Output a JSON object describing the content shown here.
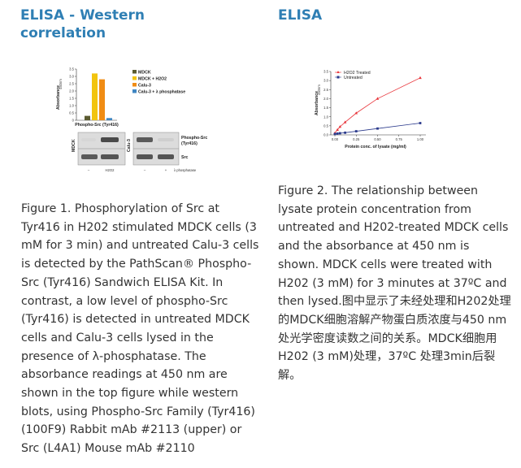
{
  "left": {
    "heading": "ELISA - Western correlation",
    "figure": {
      "bar_chart": {
        "type": "bar",
        "ylabel": "Absorbance",
        "ylabel_sub": "450nm",
        "yticks": [
          "0",
          "0.5",
          "1.0",
          "1.5",
          "2.0",
          "2.5",
          "3.0",
          "3.5"
        ],
        "ylim": [
          0,
          3.5
        ],
        "xlabel": "Phospho-Src (Tyr416)",
        "series": [
          {
            "name": "MDCK",
            "color": "#5b5b30",
            "value": 0.3
          },
          {
            "name": "MDCK + H2O2",
            "color": "#f2c40e",
            "value": 3.2
          },
          {
            "name": "Calu-3",
            "color": "#f08c14",
            "value": 2.8
          },
          {
            "name": "Calu-3 + λ phosphatase",
            "color": "#3f86c2",
            "value": 0.15
          }
        ]
      },
      "blot": {
        "mdck_label": "MDCK",
        "calu_label": "Calu-3",
        "band_label_1_line1": "Phospho-Src",
        "band_label_1_line2": "(Tyr416)",
        "band_label_2": "Src",
        "mdck_conditions": [
          "–",
          "H2O2"
        ],
        "calu_conditions": [
          "–",
          "+"
        ],
        "calu_condition_label": "λ phosphatase"
      }
    },
    "caption": "Figure 1. Phosphorylation of Src at Tyr416 in H202 stimulated MDCK cells (3 mM for 3 min) and untreated Calu-3 cells is detected by the PathScan® Phospho-Src (Tyr416) Sandwich ELISA Kit. In contrast, a low level of phospho-Src (Tyr416) is detected in untreated MDCK cells and Calu-3 cells lysed in the presence of λ-phosphatase. The absorbance readings at 450 nm are shown in the top figure while western blots, using Phospho-Src Family (Tyr416) (100F9) Rabbit mAb #2113 (upper) or Src (L4A1) Mouse mAb #2110"
  },
  "right": {
    "heading": "ELISA",
    "figure": {
      "line_chart": {
        "type": "line",
        "xlabel": "Protein conc. of lysate (mg/ml)",
        "ylabel": "Absorbance",
        "ylabel_sub": "450nm",
        "xticks": [
          "0.00",
          "0.25",
          "0.50",
          "0.75",
          "1.00"
        ],
        "yticks": [
          "0.0",
          "0.5",
          "1.0",
          "1.5",
          "2.0",
          "2.5",
          "3.0",
          "3.5"
        ],
        "xlim": [
          0,
          1.0
        ],
        "ylim": [
          0,
          3.5
        ],
        "series": [
          {
            "name": "H2O2 Treated",
            "color": "#e8343a",
            "marker": "triangle",
            "x": [
              0.0,
              0.03,
              0.06,
              0.12,
              0.25,
              0.5,
              1.0
            ],
            "y": [
              0.1,
              0.28,
              0.45,
              0.7,
              1.2,
              2.0,
              3.15
            ]
          },
          {
            "name": "Untreated",
            "color": "#2b3a8c",
            "marker": "square",
            "x": [
              0.0,
              0.03,
              0.06,
              0.12,
              0.25,
              0.5,
              1.0
            ],
            "y": [
              0.05,
              0.07,
              0.09,
              0.12,
              0.2,
              0.35,
              0.65
            ]
          }
        ]
      }
    },
    "caption": "Figure 2. The relationship between lysate protein concentration from untreated and H202-treated MDCK cells and the absorbance at 450 nm is shown. MDCK cells were treated with H202 (3 mM) for 3 minutes at 37ºC and then lysed.图中显示了未经处理和H202处理的MDCK细胞溶解产物蛋白质浓度与450 nm 处光学密度读数之间的关系。MDCK细胞用H202 (3 mM)处理，37ºC 处理3min后裂解。"
  }
}
